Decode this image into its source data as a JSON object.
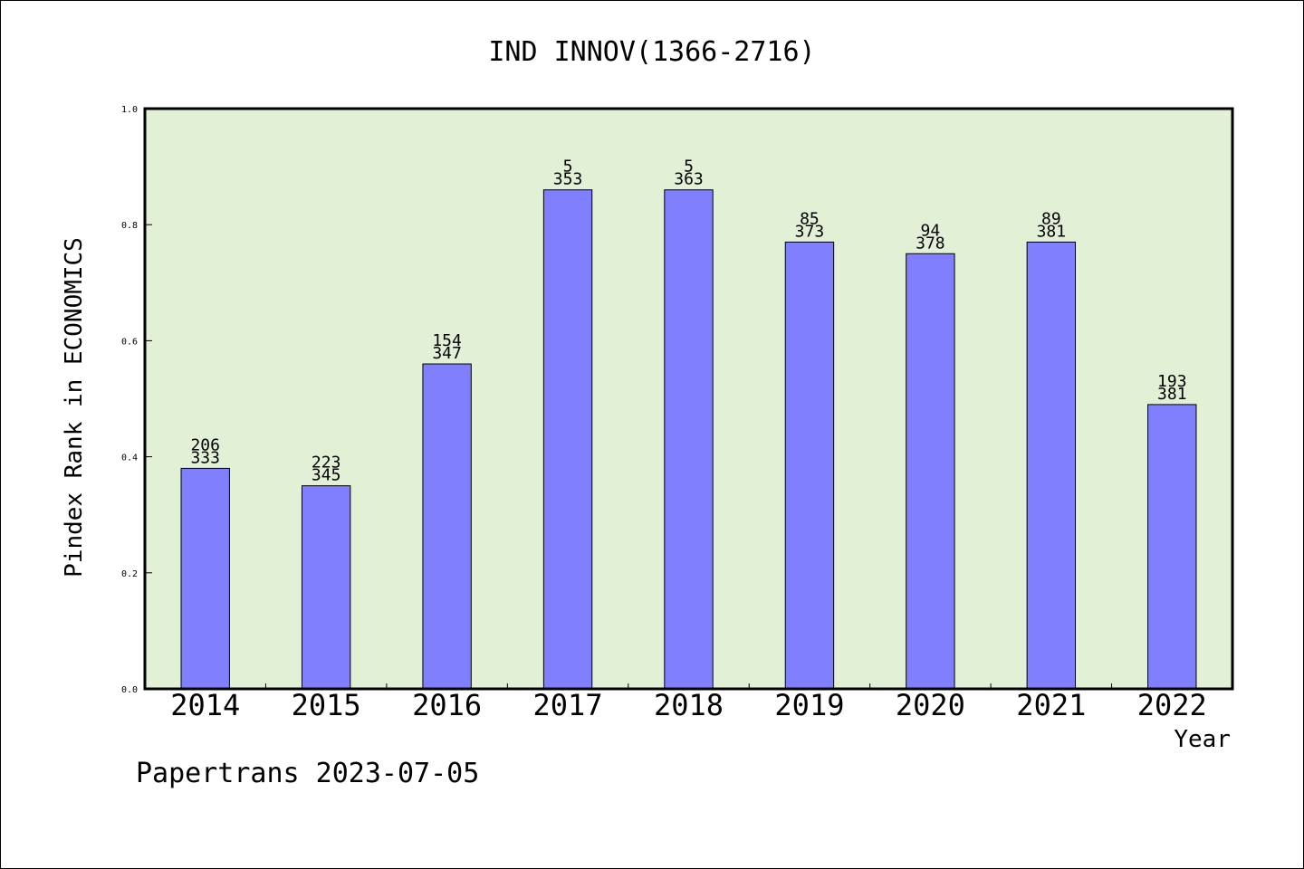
{
  "chart_data": {
    "type": "bar",
    "title": "IND INNOV(1366-2716)",
    "xlabel": "Year",
    "ylabel": "Pindex Rank in ECONOMICS",
    "categories": [
      "2014",
      "2015",
      "2016",
      "2017",
      "2018",
      "2019",
      "2020",
      "2021",
      "2022"
    ],
    "values": [
      0.38,
      0.35,
      0.56,
      0.86,
      0.86,
      0.77,
      0.75,
      0.77,
      0.49
    ],
    "rank_labels": [
      "206",
      "223",
      "154",
      "5",
      "5",
      "85",
      "94",
      "89",
      "193"
    ],
    "total_labels": [
      "333",
      "345",
      "347",
      "353",
      "363",
      "373",
      "378",
      "381",
      "381"
    ],
    "ylim": [
      0,
      1.0
    ],
    "yticks": [
      "0.0",
      "0.2",
      "0.4",
      "0.6",
      "0.8",
      "1.0"
    ],
    "grid": false,
    "colors": {
      "bar": "#8080ff",
      "plot_background": "#e2f0d6",
      "axis": "#000000"
    }
  },
  "footer": "Papertrans 2023-07-05"
}
